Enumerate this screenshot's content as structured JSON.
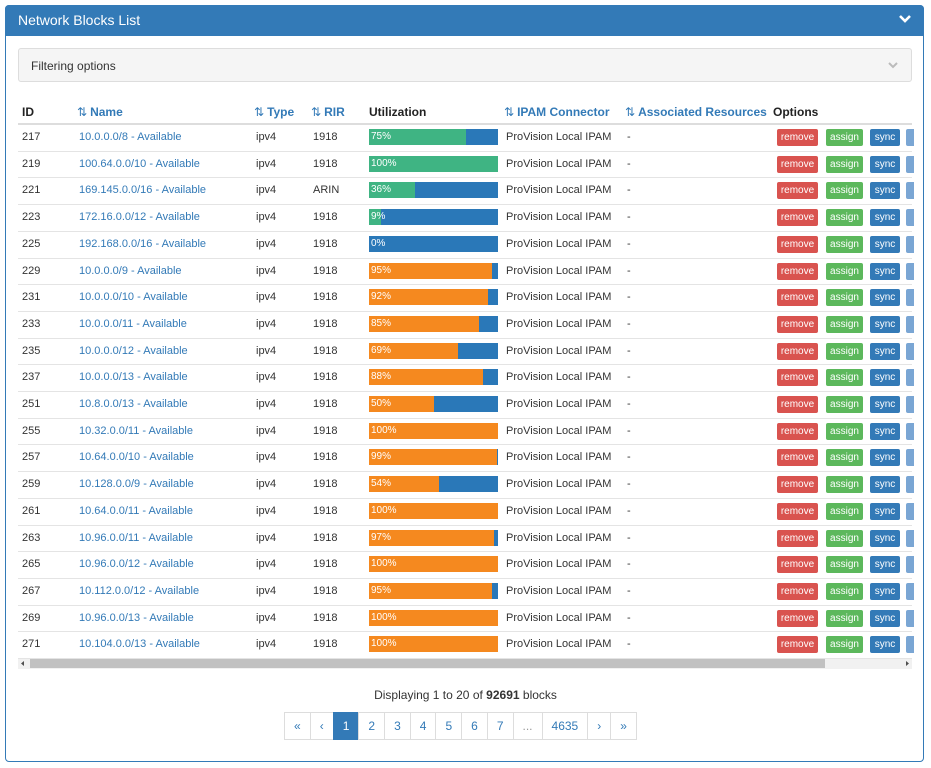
{
  "header": {
    "title": "Network Blocks List"
  },
  "filter": {
    "title": "Filtering options"
  },
  "table": {
    "columns": [
      "ID",
      "Name",
      "Type",
      "RIR",
      "Utilization",
      "IPAM Connector",
      "Associated Resources",
      "Options"
    ],
    "actions": [
      "remove",
      "assign",
      "sync"
    ],
    "rows": [
      {
        "id": 217,
        "name": "10.0.0.0/8 - Available",
        "type": "ipv4",
        "rir": "1918",
        "utilization": {
          "value": 75,
          "label": "75%"
        },
        "color": "#3fb483",
        "connector": "ProVision Local IPAM",
        "resources": "-"
      },
      {
        "id": 219,
        "name": "100.64.0.0/10 - Available",
        "type": "ipv4",
        "rir": "1918",
        "utilization": {
          "value": 100,
          "label": "100%"
        },
        "color": "#3fb483",
        "connector": "ProVision Local IPAM",
        "resources": "-"
      },
      {
        "id": 221,
        "name": "169.145.0.0/16 - Available",
        "type": "ipv4",
        "rir": "ARIN",
        "utilization": {
          "value": 36,
          "label": "36%"
        },
        "color": "#3fb483",
        "connector": "ProVision Local IPAM",
        "resources": "-"
      },
      {
        "id": 223,
        "name": "172.16.0.0/12 - Available",
        "type": "ipv4",
        "rir": "1918",
        "utilization": {
          "value": 9,
          "label": "9%"
        },
        "color": "#3fb483",
        "connector": "ProVision Local IPAM",
        "resources": "-"
      },
      {
        "id": 225,
        "name": "192.168.0.0/16 - Available",
        "type": "ipv4",
        "rir": "1918",
        "utilization": {
          "value": 0,
          "label": "0%"
        },
        "color": "#3fb483",
        "connector": "ProVision Local IPAM",
        "resources": "-"
      },
      {
        "id": 229,
        "name": "10.0.0.0/9 - Available",
        "type": "ipv4",
        "rir": "1918",
        "utilization": {
          "value": 95,
          "label": "95%"
        },
        "color": "#f5891f",
        "connector": "ProVision Local IPAM",
        "resources": "-"
      },
      {
        "id": 231,
        "name": "10.0.0.0/10 - Available",
        "type": "ipv4",
        "rir": "1918",
        "utilization": {
          "value": 92,
          "label": "92%"
        },
        "color": "#f5891f",
        "connector": "ProVision Local IPAM",
        "resources": "-"
      },
      {
        "id": 233,
        "name": "10.0.0.0/11 - Available",
        "type": "ipv4",
        "rir": "1918",
        "utilization": {
          "value": 85,
          "label": "85%"
        },
        "color": "#f5891f",
        "connector": "ProVision Local IPAM",
        "resources": "-"
      },
      {
        "id": 235,
        "name": "10.0.0.0/12 - Available",
        "type": "ipv4",
        "rir": "1918",
        "utilization": {
          "value": 69,
          "label": "69%"
        },
        "color": "#f5891f",
        "connector": "ProVision Local IPAM",
        "resources": "-"
      },
      {
        "id": 237,
        "name": "10.0.0.0/13 - Available",
        "type": "ipv4",
        "rir": "1918",
        "utilization": {
          "value": 88,
          "label": "88%"
        },
        "color": "#f5891f",
        "connector": "ProVision Local IPAM",
        "resources": "-"
      },
      {
        "id": 251,
        "name": "10.8.0.0/13 - Available",
        "type": "ipv4",
        "rir": "1918",
        "utilization": {
          "value": 50,
          "label": "50%"
        },
        "color": "#f5891f",
        "connector": "ProVision Local IPAM",
        "resources": "-"
      },
      {
        "id": 255,
        "name": "10.32.0.0/11 - Available",
        "type": "ipv4",
        "rir": "1918",
        "utilization": {
          "value": 100,
          "label": "100%"
        },
        "color": "#f5891f",
        "connector": "ProVision Local IPAM",
        "resources": "-"
      },
      {
        "id": 257,
        "name": "10.64.0.0/10 - Available",
        "type": "ipv4",
        "rir": "1918",
        "utilization": {
          "value": 99,
          "label": "99%"
        },
        "color": "#f5891f",
        "connector": "ProVision Local IPAM",
        "resources": "-"
      },
      {
        "id": 259,
        "name": "10.128.0.0/9 - Available",
        "type": "ipv4",
        "rir": "1918",
        "utilization": {
          "value": 54,
          "label": "54%"
        },
        "color": "#f5891f",
        "connector": "ProVision Local IPAM",
        "resources": "-"
      },
      {
        "id": 261,
        "name": "10.64.0.0/11 - Available",
        "type": "ipv4",
        "rir": "1918",
        "utilization": {
          "value": 100,
          "label": "100%"
        },
        "color": "#f5891f",
        "connector": "ProVision Local IPAM",
        "resources": "-"
      },
      {
        "id": 263,
        "name": "10.96.0.0/11 - Available",
        "type": "ipv4",
        "rir": "1918",
        "utilization": {
          "value": 97,
          "label": "97%"
        },
        "color": "#f5891f",
        "connector": "ProVision Local IPAM",
        "resources": "-"
      },
      {
        "id": 265,
        "name": "10.96.0.0/12 - Available",
        "type": "ipv4",
        "rir": "1918",
        "utilization": {
          "value": 100,
          "label": "100%"
        },
        "color": "#f5891f",
        "connector": "ProVision Local IPAM",
        "resources": "-"
      },
      {
        "id": 267,
        "name": "10.112.0.0/12 - Available",
        "type": "ipv4",
        "rir": "1918",
        "utilization": {
          "value": 95,
          "label": "95%"
        },
        "color": "#f5891f",
        "connector": "ProVision Local IPAM",
        "resources": "-"
      },
      {
        "id": 269,
        "name": "10.96.0.0/13 - Available",
        "type": "ipv4",
        "rir": "1918",
        "utilization": {
          "value": 100,
          "label": "100%"
        },
        "color": "#f5891f",
        "connector": "ProVision Local IPAM",
        "resources": "-"
      },
      {
        "id": 271,
        "name": "10.104.0.0/13 - Available",
        "type": "ipv4",
        "rir": "1918",
        "utilization": {
          "value": 100,
          "label": "100%"
        },
        "color": "#f5891f",
        "connector": "ProVision Local IPAM",
        "resources": "-"
      }
    ]
  },
  "footer": {
    "summary_prefix": "Displaying 1 to 20 of",
    "summary_count": 92691,
    "summary_suffix": "blocks"
  },
  "pagination": {
    "items": [
      "«",
      "‹",
      "1",
      "2",
      "3",
      "4",
      "5",
      "6",
      "7",
      "...",
      "4635",
      "›",
      "»"
    ],
    "active_index": 2
  }
}
